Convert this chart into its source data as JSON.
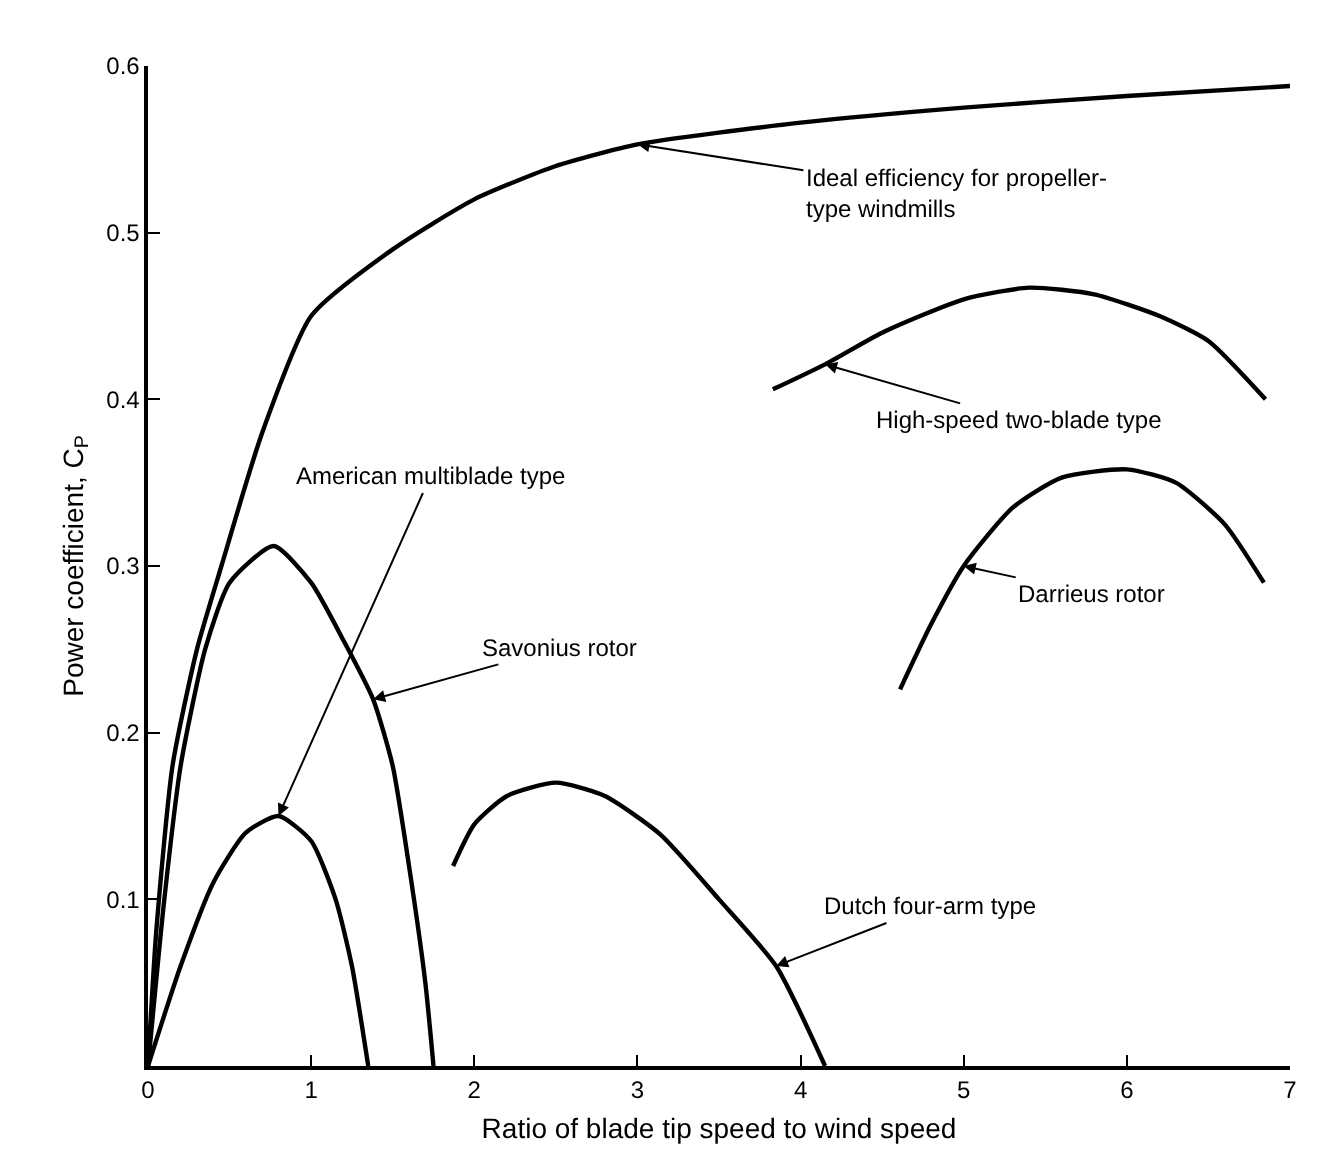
{
  "chart_data": {
    "type": "line",
    "xlabel": "Ratio of blade tip speed to wind speed",
    "ylabel": "Power coefficient, C$_{P}$",
    "xlim": [
      0,
      7
    ],
    "xticks": [
      0,
      1,
      2,
      3,
      4,
      5,
      6,
      7
    ],
    "ylim": [
      0,
      0.6
    ],
    "yticks": [
      0.1,
      0.2,
      0.3,
      0.4,
      0.5,
      0.6
    ],
    "legend": false,
    "marker": "none",
    "line_style": "solid",
    "series": [
      {
        "name": "Ideal efficiency for propeller-\ntype windmills",
        "color": "#000000",
        "x": [
          0,
          0.05,
          0.15,
          0.3,
          0.45,
          0.7,
          1.0,
          1.5,
          2.0,
          2.5,
          3.0,
          4,
          5,
          6,
          7
        ],
        "values": [
          0,
          0.08,
          0.18,
          0.25,
          0.3,
          0.38,
          0.45,
          0.49,
          0.52,
          0.54,
          0.553,
          0.566,
          0.575,
          0.582,
          0.588
        ]
      },
      {
        "name": "High-speed two-blade type",
        "color": "#000000",
        "x": [
          3.83,
          4.15,
          4.5,
          5.0,
          5.4,
          5.8,
          6.2,
          6.5,
          6.85
        ],
        "values": [
          0.406,
          0.421,
          0.44,
          0.46,
          0.467,
          0.463,
          0.45,
          0.435,
          0.4
        ]
      },
      {
        "name": "Darrieus rotor",
        "color": "#000000",
        "x": [
          4.61,
          4.8,
          5.0,
          5.3,
          5.6,
          6.0,
          6.3,
          6.6,
          6.84
        ],
        "values": [
          0.226,
          0.265,
          0.3,
          0.335,
          0.353,
          0.358,
          0.35,
          0.325,
          0.29
        ]
      },
      {
        "name": "American multiblade type",
        "color": "#000000",
        "x": [
          0,
          0.2,
          0.4,
          0.6,
          0.8,
          1.0,
          1.15,
          1.25,
          1.35
        ],
        "values": [
          0,
          0.06,
          0.11,
          0.14,
          0.15,
          0.135,
          0.1,
          0.06,
          0
        ]
      },
      {
        "name": "Savonius rotor",
        "color": "#000000",
        "x": [
          0,
          0.1,
          0.2,
          0.35,
          0.5,
          0.77,
          1.0,
          1.2,
          1.38,
          1.5,
          1.6,
          1.7,
          1.75
        ],
        "values": [
          0,
          0.1,
          0.18,
          0.25,
          0.29,
          0.312,
          0.29,
          0.255,
          0.22,
          0.18,
          0.12,
          0.05,
          0
        ]
      },
      {
        "name": "Dutch four-arm type",
        "color": "#000000",
        "x": [
          1.87,
          2.0,
          2.2,
          2.5,
          2.8,
          3.14,
          3.5,
          3.85,
          4.15
        ],
        "values": [
          0.12,
          0.145,
          0.162,
          0.17,
          0.162,
          0.139,
          0.1,
          0.06,
          0
        ]
      }
    ]
  }
}
